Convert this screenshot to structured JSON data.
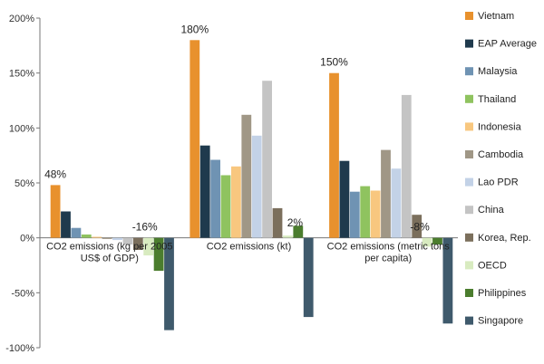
{
  "chart_data": {
    "type": "bar",
    "ylim": [
      -100,
      200
    ],
    "yticks": [
      "-100%",
      "-50%",
      "0%",
      "50%",
      "100%",
      "150%",
      "200%"
    ],
    "ytick_values": [
      -100,
      -50,
      0,
      50,
      100,
      150,
      200
    ],
    "categories": [
      [
        "CO2 emissions (kg per 2005",
        "US$ of GDP)"
      ],
      [
        "CO2 emissions (kt)"
      ],
      [
        "CO2 emissions (metric tons",
        "per capita)"
      ]
    ],
    "legend_position": "right",
    "grid": false,
    "series": [
      {
        "name": "Vietnam",
        "color": "#E8912D",
        "values": [
          48,
          180,
          150
        ]
      },
      {
        "name": "EAP Average",
        "color": "#1F3A4D",
        "values": [
          24,
          84,
          70
        ]
      },
      {
        "name": "Malaysia",
        "color": "#6F93B3",
        "values": [
          9,
          71,
          42
        ]
      },
      {
        "name": "Thailand",
        "color": "#8FC35F",
        "values": [
          3,
          57,
          47
        ]
      },
      {
        "name": "Indonesia",
        "color": "#F8C77F",
        "values": [
          1,
          65,
          43
        ]
      },
      {
        "name": "Cambodia",
        "color": "#A09786",
        "values": [
          -1,
          112,
          80
        ]
      },
      {
        "name": "Lao PDR",
        "color": "#C3D2E7",
        "values": [
          -2,
          93,
          63
        ]
      },
      {
        "name": "China",
        "color": "#C4C4C4",
        "values": [
          -6,
          143,
          130
        ]
      },
      {
        "name": "Korea, Rep.",
        "color": "#7B6F5C",
        "values": [
          -11,
          27,
          21
        ]
      },
      {
        "name": "OECD",
        "color": "#D8EBC0",
        "values": [
          -16,
          2,
          -8
        ]
      },
      {
        "name": "Philippines",
        "color": "#4B7D2E",
        "values": [
          -30,
          11,
          -6
        ]
      },
      {
        "name": "Singapore",
        "color": "#3F5A6C",
        "values": [
          -84,
          -72,
          -78
        ]
      }
    ],
    "annotations": [
      {
        "text": "48%",
        "category": 0,
        "value": 48
      },
      {
        "text": "-16%",
        "category": 0,
        "value": -16
      },
      {
        "text": "180%",
        "category": 1,
        "value": 180
      },
      {
        "text": "2%",
        "category": 1,
        "value": 2
      },
      {
        "text": "150%",
        "category": 2,
        "value": 150
      },
      {
        "text": "-8%",
        "category": 2,
        "value": -8
      }
    ]
  }
}
